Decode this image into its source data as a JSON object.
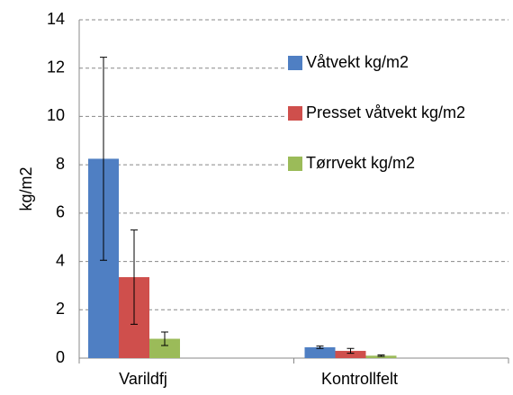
{
  "chart_data": {
    "type": "bar",
    "y_label": "kg/m2",
    "categories": [
      "Varildfj",
      "Kontrollfelt"
    ],
    "series": [
      {
        "name": "Våtvekt kg/m2",
        "color": "#4f7fc3",
        "values": [
          8.25,
          0.45
        ],
        "errors": [
          4.2,
          0.05
        ]
      },
      {
        "name": "Presset våtvekt kg/m2",
        "color": "#cf4f4c",
        "values": [
          3.35,
          0.3
        ],
        "errors": [
          1.95,
          0.1
        ]
      },
      {
        "name": "Tørrvekt kg/m2",
        "color": "#9bbb59",
        "values": [
          0.8,
          0.1
        ],
        "errors": [
          0.28,
          0.03
        ]
      }
    ],
    "ylim": [
      0,
      14
    ],
    "yticks": [
      0,
      2,
      4,
      6,
      8,
      10,
      12,
      14
    ],
    "grid": true,
    "legend": "upper right"
  }
}
